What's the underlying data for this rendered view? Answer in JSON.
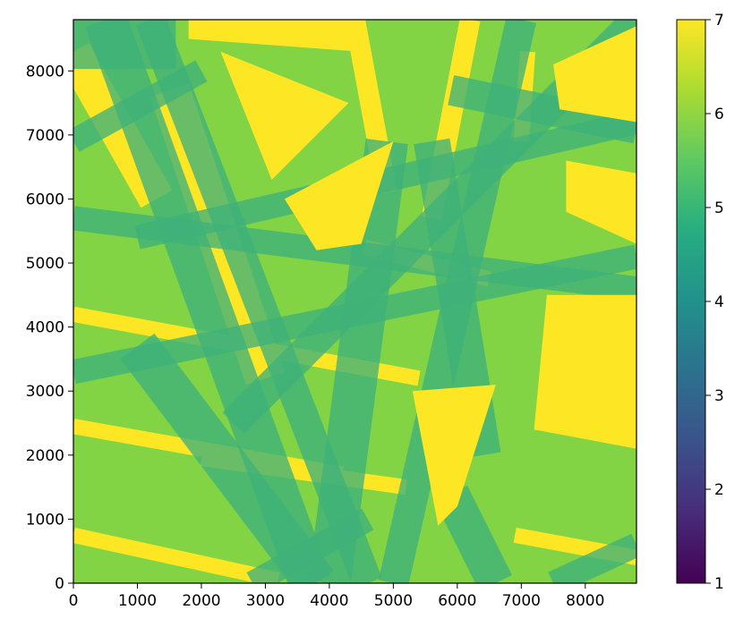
{
  "chart_data": {
    "type": "heatmap",
    "title": "",
    "xlabel": "",
    "ylabel": "",
    "xlim": [
      0,
      8800
    ],
    "ylim": [
      0,
      8800
    ],
    "x_ticks": [
      "0",
      "1000",
      "2000",
      "3000",
      "4000",
      "5000",
      "6000",
      "7000",
      "8000"
    ],
    "y_ticks": [
      "0",
      "1000",
      "2000",
      "3000",
      "4000",
      "5000",
      "6000",
      "7000",
      "8000"
    ],
    "colormap": "viridis",
    "colorbar": {
      "min": 1,
      "max": 7,
      "ticks": [
        "1",
        "2",
        "3",
        "4",
        "5",
        "6",
        "7"
      ]
    },
    "background_value": 6,
    "bands": [
      {
        "value": 7,
        "from": [
          0,
          8300
        ],
        "to": [
          1300,
          6000
        ],
        "width": 350
      },
      {
        "value": 7,
        "from": [
          1500,
          7700
        ],
        "to": [
          3000,
          3200
        ],
        "width": 400
      },
      {
        "value": 7,
        "from": [
          0,
          4200
        ],
        "to": [
          5400,
          3200
        ],
        "width": 150
      },
      {
        "value": 7,
        "from": [
          0,
          2450
        ],
        "to": [
          4200,
          1700
        ],
        "width": 150
      },
      {
        "value": 7,
        "from": [
          2000,
          1950
        ],
        "to": [
          5200,
          1500
        ],
        "width": 150
      },
      {
        "value": 7,
        "from": [
          0,
          750
        ],
        "to": [
          3200,
          50
        ],
        "width": 150
      },
      {
        "value": 7,
        "from": [
          6900,
          750
        ],
        "to": [
          8800,
          400
        ],
        "width": 150
      },
      {
        "value": 7,
        "from": [
          4550,
          5250
        ],
        "to": [
          6500,
          4750
        ],
        "width": 150
      },
      {
        "value": 7,
        "from": [
          4400,
          8800
        ],
        "to": [
          4900,
          6100
        ],
        "width": 200
      },
      {
        "value": 7,
        "from": [
          6200,
          8800
        ],
        "to": [
          5600,
          5700
        ],
        "width": 200
      },
      {
        "value": 7,
        "from": [
          7100,
          8300
        ],
        "to": [
          7000,
          6900
        ],
        "width": 150
      },
      {
        "value": 5,
        "from": [
          0,
          8600
        ],
        "to": [
          1600,
          8600
        ],
        "width": 600
      },
      {
        "value": 5,
        "from": [
          0,
          8500
        ],
        "to": [
          4400,
          7000
        ],
        "width": 0
      },
      {
        "value": 5,
        "from": [
          0,
          5700
        ],
        "to": [
          8800,
          4600
        ],
        "width": 200
      },
      {
        "value": 5,
        "from": [
          1000,
          5400
        ],
        "to": [
          8800,
          7200
        ],
        "width": 200
      },
      {
        "value": 5,
        "from": [
          0,
          3300
        ],
        "to": [
          8800,
          5100
        ],
        "width": 200
      },
      {
        "value": 5,
        "from": [
          2500,
          2500
        ],
        "to": [
          8800,
          8800
        ],
        "width": 250
      },
      {
        "value": 5,
        "from": [
          500,
          8800
        ],
        "to": [
          3700,
          0
        ],
        "width": 350
      },
      {
        "value": 5,
        "from": [
          1200,
          8800
        ],
        "to": [
          4600,
          0
        ],
        "width": 250
      },
      {
        "value": 5,
        "from": [
          1000,
          3700
        ],
        "to": [
          3800,
          0
        ],
        "width": 350
      },
      {
        "value": 5,
        "from": [
          4900,
          6900
        ],
        "to": [
          4000,
          0
        ],
        "width": 350
      },
      {
        "value": 5,
        "from": [
          7000,
          8800
        ],
        "to": [
          5000,
          0
        ],
        "width": 250
      },
      {
        "value": 5,
        "from": [
          5600,
          6900
        ],
        "to": [
          6400,
          2000
        ],
        "width": 300
      },
      {
        "value": 5,
        "from": [
          2800,
          0
        ],
        "to": [
          4600,
          1000
        ],
        "width": 200
      },
      {
        "value": 5,
        "from": [
          7500,
          0
        ],
        "to": [
          8800,
          600
        ],
        "width": 200
      },
      {
        "value": 5,
        "from": [
          5900,
          1400
        ],
        "to": [
          6600,
          0
        ],
        "width": 300
      },
      {
        "value": 5,
        "from": [
          0,
          6900
        ],
        "to": [
          2000,
          8000
        ],
        "width": 200
      },
      {
        "value": 5,
        "from": [
          5900,
          7700
        ],
        "to": [
          8800,
          7100
        ],
        "width": 250
      }
    ],
    "yellow_blocks": [
      {
        "value": 7,
        "polygon": [
          [
            1800,
            8800
          ],
          [
            4500,
            8800
          ],
          [
            4500,
            8300
          ],
          [
            1800,
            8500
          ]
        ]
      },
      {
        "value": 7,
        "polygon": [
          [
            2300,
            8300
          ],
          [
            4300,
            7500
          ],
          [
            3100,
            6300
          ]
        ]
      },
      {
        "value": 7,
        "polygon": [
          [
            3300,
            6000
          ],
          [
            5000,
            6900
          ],
          [
            4500,
            5300
          ],
          [
            3800,
            5200
          ]
        ]
      },
      {
        "value": 7,
        "polygon": [
          [
            7400,
            4500
          ],
          [
            8800,
            4500
          ],
          [
            8800,
            2100
          ],
          [
            7200,
            2400
          ]
        ]
      },
      {
        "value": 7,
        "polygon": [
          [
            7500,
            8100
          ],
          [
            8800,
            8700
          ],
          [
            8800,
            7200
          ],
          [
            7600,
            7400
          ]
        ]
      },
      {
        "value": 7,
        "polygon": [
          [
            7700,
            6600
          ],
          [
            8800,
            6400
          ],
          [
            8800,
            5300
          ],
          [
            7700,
            5800
          ]
        ]
      },
      {
        "value": 7,
        "polygon": [
          [
            5300,
            3000
          ],
          [
            6600,
            3100
          ],
          [
            6000,
            1200
          ],
          [
            5700,
            900
          ]
        ]
      }
    ]
  }
}
